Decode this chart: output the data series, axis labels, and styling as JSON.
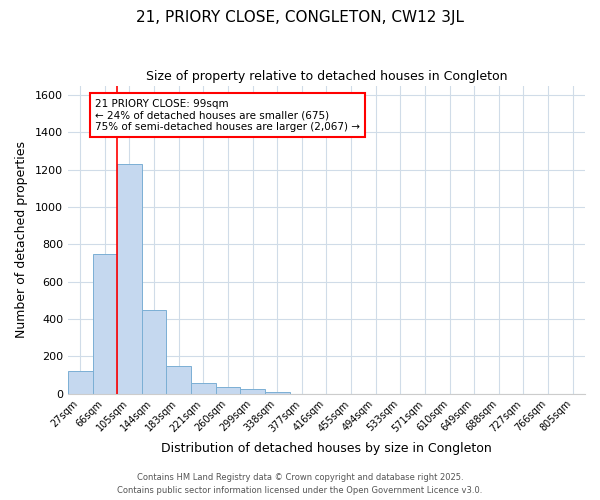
{
  "title1": "21, PRIORY CLOSE, CONGLETON, CW12 3JL",
  "title2": "Size of property relative to detached houses in Congleton",
  "xlabel": "Distribution of detached houses by size in Congleton",
  "ylabel": "Number of detached properties",
  "categories": [
    "27sqm",
    "66sqm",
    "105sqm",
    "144sqm",
    "183sqm",
    "221sqm",
    "260sqm",
    "299sqm",
    "338sqm",
    "377sqm",
    "416sqm",
    "455sqm",
    "494sqm",
    "533sqm",
    "571sqm",
    "610sqm",
    "649sqm",
    "688sqm",
    "727sqm",
    "766sqm",
    "805sqm"
  ],
  "values": [
    120,
    750,
    1230,
    450,
    150,
    57,
    35,
    28,
    10,
    0,
    0,
    0,
    0,
    0,
    0,
    0,
    0,
    0,
    0,
    0,
    0
  ],
  "bar_color": "#c5d8ef",
  "bar_edge_color": "#7bafd4",
  "annotation_text": "21 PRIORY CLOSE: 99sqm\n← 24% of detached houses are smaller (675)\n75% of semi-detached houses are larger (2,067) →",
  "annotation_box_color": "white",
  "annotation_box_edge": "red",
  "red_line_index": 2,
  "ylim": [
    0,
    1650
  ],
  "yticks": [
    0,
    200,
    400,
    600,
    800,
    1000,
    1200,
    1400,
    1600
  ],
  "footnote1": "Contains HM Land Registry data © Crown copyright and database right 2025.",
  "footnote2": "Contains public sector information licensed under the Open Government Licence v3.0.",
  "bg_color": "#ffffff",
  "plot_bg_color": "#ffffff",
  "grid_color": "#d0dce8"
}
